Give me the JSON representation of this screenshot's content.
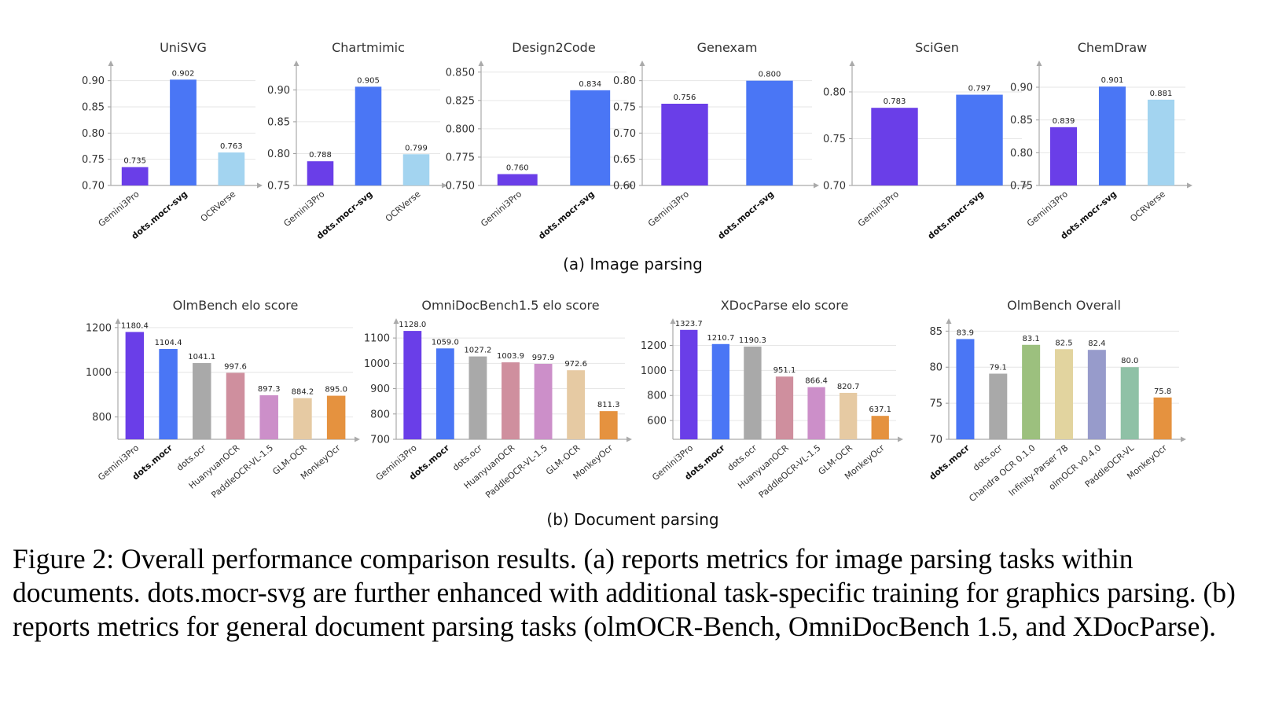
{
  "subcaptions": {
    "a": "(a) Image parsing",
    "b": "(b) Document parsing"
  },
  "caption": "Figure 2: Overall performance comparison results. (a) reports metrics for image parsing tasks within documents. dots.mocr-svg are further enhanced with additional task-specific training for graphics parsing. (b) reports metrics for general document parsing tasks (olmOCR-Bench, OmniDocBench 1.5, and XDocParse).",
  "colors": {
    "Gemini3Pro": "#6a3ee8",
    "dots.mocr-svg": "#4a76f5",
    "dots.mocr": "#4a76f5",
    "OCRVerse": "#a3d4f0",
    "dots.ocr": "#a9a9a9",
    "HuanyuanOCR": "#cf8f9e",
    "PaddleOCR-VL-1.5": "#cc8fc9",
    "GLM-OCR": "#e6caa3",
    "MonkeyOcr": "#e5923f",
    "Chandra OCR 0.1.0": "#9cc07e",
    "Infinity-Parser 7B": "#e2d49f",
    "olmOCR v0.4.0": "#979bcb",
    "PaddleOCR-VL": "#8fc1a6"
  },
  "chart_data": [
    {
      "type": "bar",
      "title": "UniSVG",
      "categories": [
        "Gemini3Pro",
        "dots.mocr-svg",
        "OCRVerse"
      ],
      "values": [
        0.735,
        0.902,
        0.763
      ],
      "labels": [
        "0.735",
        "0.902",
        "0.763"
      ],
      "bold": [
        "dots.mocr-svg"
      ],
      "ylim": [
        0.7,
        0.925
      ],
      "yticks": [
        "0.70",
        "0.75",
        "0.80",
        "0.85",
        "0.90"
      ],
      "grid": true
    },
    {
      "type": "bar",
      "title": "Chartmimic",
      "categories": [
        "Gemini3Pro",
        "dots.mocr-svg",
        "OCRVerse"
      ],
      "values": [
        0.788,
        0.905,
        0.799
      ],
      "labels": [
        "0.788",
        "0.905",
        "0.799"
      ],
      "bold": [
        "dots.mocr-svg"
      ],
      "ylim": [
        0.75,
        0.935
      ],
      "yticks": [
        "0.75",
        "0.80",
        "0.85",
        "0.90"
      ],
      "grid": true
    },
    {
      "type": "bar",
      "title": "Design2Code",
      "categories": [
        "Gemini3Pro",
        "dots.mocr-svg"
      ],
      "values": [
        0.76,
        0.834
      ],
      "labels": [
        "0.760",
        "0.834"
      ],
      "bold": [
        "dots.mocr-svg"
      ],
      "ylim": [
        0.75,
        0.854
      ],
      "yticks": [
        "0.750",
        "0.775",
        "0.800",
        "0.825",
        "0.850"
      ],
      "grid": true
    },
    {
      "type": "bar",
      "title": "Genexam",
      "categories": [
        "Gemini3Pro",
        "dots.mocr-svg"
      ],
      "values": [
        0.756,
        0.8
      ],
      "labels": [
        "0.756",
        "0.800"
      ],
      "bold": [
        "dots.mocr-svg"
      ],
      "ylim": [
        0.6,
        0.825
      ],
      "yticks": [
        "0.60",
        "0.65",
        "0.70",
        "0.75",
        "0.80"
      ],
      "grid": true
    },
    {
      "type": "bar",
      "title": "SciGen",
      "categories": [
        "Gemini3Pro",
        "dots.mocr-svg"
      ],
      "values": [
        0.783,
        0.797
      ],
      "labels": [
        "0.783",
        "0.797"
      ],
      "bold": [
        "dots.mocr-svg"
      ],
      "ylim": [
        0.7,
        0.826
      ],
      "yticks": [
        "0.70",
        "0.75",
        "0.80"
      ],
      "grid": true
    },
    {
      "type": "bar",
      "title": "ChemDraw",
      "categories": [
        "Gemini3Pro",
        "dots.mocr-svg",
        "OCRVerse"
      ],
      "values": [
        0.839,
        0.901,
        0.881
      ],
      "labels": [
        "0.839",
        "0.901",
        "0.881"
      ],
      "bold": [
        "dots.mocr-svg"
      ],
      "ylim": [
        0.75,
        0.93
      ],
      "yticks": [
        "0.75",
        "0.80",
        "0.85",
        "0.90"
      ],
      "grid": true
    },
    {
      "type": "bar",
      "title": "OlmBench elo score",
      "categories": [
        "Gemini3Pro",
        "dots.mocr",
        "dots.ocr",
        "HuanyuanOCR",
        "PaddleOCR-VL-1.5",
        "GLM-OCR",
        "MonkeyOcr"
      ],
      "values": [
        1180.4,
        1104.4,
        1041.1,
        997.6,
        897.3,
        884.2,
        895.0
      ],
      "labels": [
        "1180.4",
        "1104.4",
        "1041.1",
        "997.6",
        "897.3",
        "884.2",
        "895.0"
      ],
      "bold": [
        "dots.mocr"
      ],
      "ylim": [
        700,
        1210
      ],
      "yticks": [
        "800",
        "1000",
        "1200"
      ],
      "grid": true
    },
    {
      "type": "bar",
      "title": "OmniDocBench1.5 elo score",
      "categories": [
        "Gemini3Pro",
        "dots.mocr",
        "dots.ocr",
        "HuanyuanOCR",
        "PaddleOCR-VL-1.5",
        "GLM-OCR",
        "MonkeyOcr"
      ],
      "values": [
        1128.0,
        1059.0,
        1027.2,
        1003.9,
        997.9,
        972.6,
        811.3
      ],
      "labels": [
        "1128.0",
        "1059.0",
        "1027.2",
        "1003.9",
        "997.9",
        "972.6",
        "811.3"
      ],
      "bold": [
        "dots.mocr"
      ],
      "ylim": [
        700,
        1150
      ],
      "yticks": [
        "700",
        "800",
        "900",
        "1000",
        "1100"
      ],
      "grid": true
    },
    {
      "type": "bar",
      "title": "XDocParse elo score",
      "categories": [
        "Gemini3Pro",
        "dots.mocr",
        "dots.ocr",
        "HuanyuanOCR",
        "PaddleOCR-VL-1.5",
        "GLM-OCR",
        "MonkeyOcr"
      ],
      "values": [
        1323.7,
        1210.7,
        1190.3,
        951.1,
        866.4,
        820.7,
        637.1
      ],
      "labels": [
        "1323.7",
        "1210.7",
        "1190.3",
        "951.1",
        "866.4",
        "820.7",
        "637.1"
      ],
      "bold": [
        "dots.mocr"
      ],
      "ylim": [
        450,
        1360
      ],
      "yticks": [
        "600",
        "800",
        "1000",
        "1200"
      ],
      "grid": true
    },
    {
      "type": "bar",
      "title": "OlmBench Overall",
      "categories": [
        "dots.mocr",
        "dots.ocr",
        "Chandra OCR 0.1.0",
        "Infinity-Parser 7B",
        "olmOCR v0.4.0",
        "PaddleOCR-VL",
        "MonkeyOcr"
      ],
      "values": [
        83.9,
        79.1,
        83.1,
        82.5,
        82.4,
        80.0,
        75.8
      ],
      "labels": [
        "83.9",
        "79.1",
        "83.1",
        "82.5",
        "82.4",
        "80.0",
        "75.8"
      ],
      "bold": [
        "dots.mocr"
      ],
      "ylim": [
        70,
        85.8
      ],
      "yticks": [
        "70",
        "75",
        "80",
        "85"
      ],
      "grid": true
    }
  ]
}
